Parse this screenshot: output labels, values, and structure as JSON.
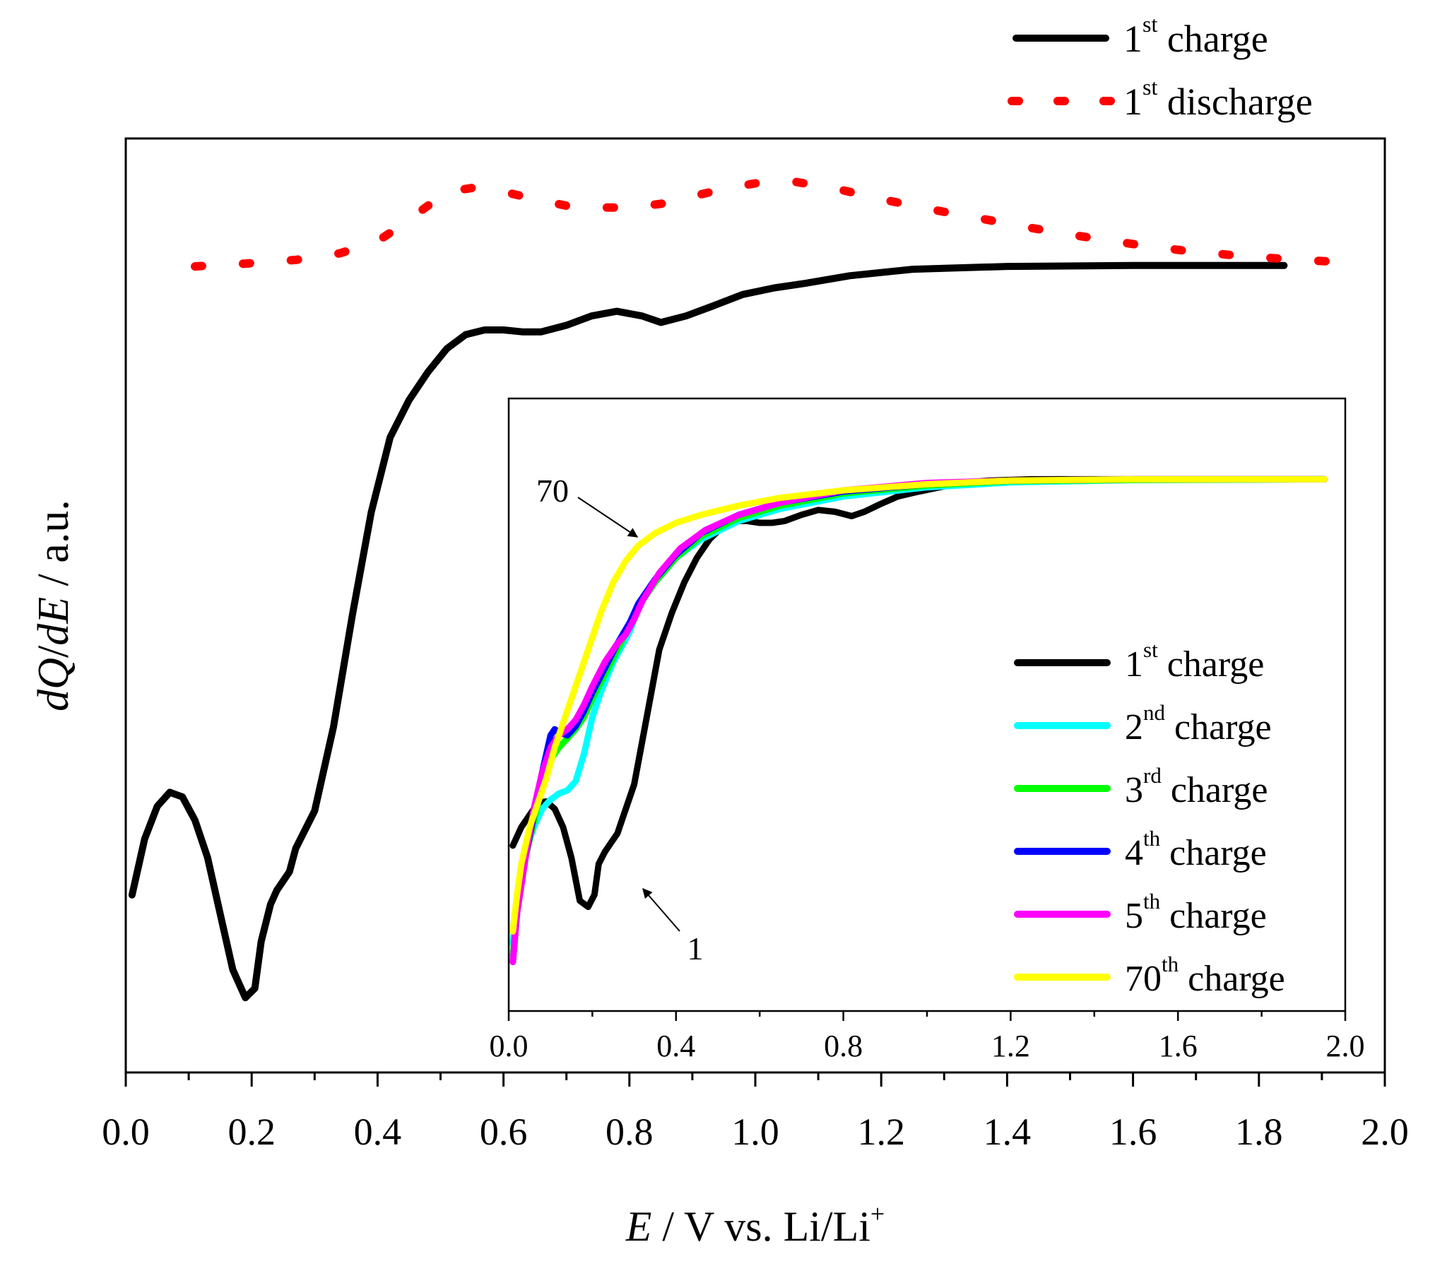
{
  "chart_data": [
    {
      "id": "main",
      "type": "line",
      "xlabel": {
        "italic": "E",
        "rest": " / V vs. Li/Li",
        "sup": "+"
      },
      "ylabel": {
        "parts": [
          {
            "text": "dQ",
            "italic": true
          },
          {
            "text": "/",
            "italic": false
          },
          {
            "text": "dE",
            "italic": true
          },
          {
            "text": " / a.u.",
            "italic": false
          }
        ]
      },
      "xlim": [
        0.0,
        2.0
      ],
      "ylim": [
        0.0,
        1.0
      ],
      "y_ticks_shown": false,
      "x_ticks": [
        "0.0",
        "0.2",
        "0.4",
        "0.6",
        "0.8",
        "1.0",
        "1.2",
        "1.4",
        "1.6",
        "1.8",
        "2.0"
      ],
      "legend": [
        {
          "num": "1",
          "sup": "st",
          "text": "charge",
          "color": "#000000",
          "style": "solid"
        },
        {
          "num": "1",
          "sup": "st",
          "text": "discharge",
          "color": "#ff0000",
          "style": "dotted"
        }
      ],
      "series": [
        {
          "name": "1st charge",
          "color": "#000000",
          "style": "solid",
          "x": [
            0.01,
            0.03,
            0.05,
            0.07,
            0.09,
            0.11,
            0.13,
            0.15,
            0.17,
            0.19,
            0.205,
            0.215,
            0.23,
            0.24,
            0.26,
            0.27,
            0.3,
            0.33,
            0.36,
            0.39,
            0.42,
            0.45,
            0.48,
            0.51,
            0.54,
            0.57,
            0.6,
            0.63,
            0.66,
            0.7,
            0.74,
            0.78,
            0.82,
            0.85,
            0.89,
            0.93,
            0.98,
            1.03,
            1.08,
            1.15,
            1.25,
            1.4,
            1.6,
            1.84
          ],
          "y": [
            0.19,
            0.25,
            0.285,
            0.3,
            0.295,
            0.27,
            0.23,
            0.17,
            0.11,
            0.08,
            0.09,
            0.14,
            0.18,
            0.195,
            0.215,
            0.24,
            0.28,
            0.37,
            0.49,
            0.6,
            0.68,
            0.72,
            0.75,
            0.775,
            0.79,
            0.795,
            0.795,
            0.793,
            0.793,
            0.8,
            0.81,
            0.815,
            0.81,
            0.803,
            0.81,
            0.82,
            0.833,
            0.84,
            0.845,
            0.853,
            0.86,
            0.863,
            0.864,
            0.864
          ]
        },
        {
          "name": "1st discharge",
          "color": "#ff0000",
          "style": "dotted",
          "x": [
            0.11,
            0.19,
            0.27,
            0.34,
            0.4,
            0.44,
            0.48,
            0.51,
            0.55,
            0.6,
            0.65,
            0.7,
            0.75,
            0.8,
            0.85,
            0.9,
            0.95,
            1.0,
            1.06,
            1.13,
            1.2,
            1.28,
            1.36,
            1.44,
            1.52,
            1.6,
            1.68,
            1.76,
            1.84,
            1.92
          ],
          "y": [
            0.863,
            0.866,
            0.87,
            0.877,
            0.89,
            0.908,
            0.928,
            0.943,
            0.947,
            0.943,
            0.935,
            0.928,
            0.926,
            0.926,
            0.93,
            0.938,
            0.946,
            0.952,
            0.954,
            0.946,
            0.935,
            0.924,
            0.914,
            0.904,
            0.895,
            0.887,
            0.88,
            0.875,
            0.871,
            0.868
          ]
        }
      ]
    },
    {
      "id": "inset",
      "type": "line",
      "xlim": [
        0.0,
        2.0
      ],
      "ylim": [
        0.0,
        1.0
      ],
      "y_ticks_shown": false,
      "x_ticks": [
        "0.0",
        "0.4",
        "0.8",
        "1.2",
        "1.6",
        "2.0"
      ],
      "legend": [
        {
          "num": "1",
          "sup": "st",
          "text": "charge",
          "color": "#000000"
        },
        {
          "num": "2",
          "sup": "nd",
          "text": "charge",
          "color": "#00ffff"
        },
        {
          "num": "3",
          "sup": "rd",
          "text": "charge",
          "color": "#00ff00"
        },
        {
          "num": "4",
          "sup": "th",
          "text": "charge",
          "color": "#0000ff"
        },
        {
          "num": "5",
          "sup": "th",
          "text": "charge",
          "color": "#ff00ff"
        },
        {
          "num": "70",
          "sup": "th",
          "text": "charge",
          "color": "#ffff00"
        }
      ],
      "annotations": [
        {
          "text": "70",
          "target_series": "70th charge"
        },
        {
          "text": "1",
          "target_series": "1st charge"
        }
      ],
      "series": [
        {
          "name": "1st charge",
          "color": "#000000",
          "x": [
            0.01,
            0.03,
            0.05,
            0.07,
            0.09,
            0.11,
            0.13,
            0.15,
            0.17,
            0.19,
            0.205,
            0.215,
            0.23,
            0.24,
            0.26,
            0.27,
            0.3,
            0.33,
            0.36,
            0.39,
            0.42,
            0.45,
            0.48,
            0.51,
            0.54,
            0.57,
            0.6,
            0.63,
            0.66,
            0.7,
            0.74,
            0.78,
            0.82,
            0.85,
            0.89,
            0.93,
            0.98,
            1.03,
            1.08,
            1.15,
            1.25,
            1.4,
            1.6,
            1.95
          ],
          "y": [
            0.27,
            0.3,
            0.32,
            0.34,
            0.342,
            0.33,
            0.3,
            0.25,
            0.18,
            0.17,
            0.19,
            0.24,
            0.26,
            0.27,
            0.29,
            0.31,
            0.37,
            0.48,
            0.59,
            0.65,
            0.7,
            0.74,
            0.77,
            0.79,
            0.8,
            0.8,
            0.797,
            0.797,
            0.8,
            0.81,
            0.818,
            0.815,
            0.808,
            0.815,
            0.828,
            0.84,
            0.848,
            0.855,
            0.862,
            0.866,
            0.868,
            0.868,
            0.868,
            0.868
          ]
        },
        {
          "name": "2nd charge",
          "color": "#00ffff",
          "x": [
            0.01,
            0.02,
            0.04,
            0.06,
            0.08,
            0.1,
            0.12,
            0.14,
            0.16,
            0.18,
            0.2,
            0.22,
            0.25,
            0.29,
            0.31,
            0.35,
            0.4,
            0.46,
            0.55,
            0.65,
            0.8,
            1.0,
            1.2,
            1.5,
            1.95
          ],
          "y": [
            0.11,
            0.19,
            0.26,
            0.3,
            0.33,
            0.345,
            0.355,
            0.36,
            0.375,
            0.42,
            0.48,
            0.52,
            0.57,
            0.62,
            0.66,
            0.7,
            0.74,
            0.77,
            0.8,
            0.82,
            0.84,
            0.855,
            0.863,
            0.867,
            0.868
          ]
        },
        {
          "name": "3rd charge",
          "color": "#00ff00",
          "x": [
            0.01,
            0.02,
            0.04,
            0.06,
            0.08,
            0.1,
            0.12,
            0.14,
            0.16,
            0.18,
            0.2,
            0.23,
            0.26,
            0.29,
            0.31,
            0.35,
            0.4,
            0.46,
            0.55,
            0.65,
            0.8,
            1.0,
            1.2,
            1.5,
            1.95
          ],
          "y": [
            0.09,
            0.17,
            0.25,
            0.31,
            0.37,
            0.41,
            0.43,
            0.445,
            0.46,
            0.48,
            0.51,
            0.55,
            0.59,
            0.63,
            0.66,
            0.7,
            0.74,
            0.775,
            0.805,
            0.825,
            0.845,
            0.858,
            0.865,
            0.867,
            0.868
          ]
        },
        {
          "name": "4th charge",
          "color": "#0000ff",
          "x": [
            0.01,
            0.02,
            0.04,
            0.06,
            0.08,
            0.1,
            0.11,
            0.12,
            0.14,
            0.16,
            0.18,
            0.2,
            0.23,
            0.26,
            0.29,
            0.31,
            0.35,
            0.4,
            0.46,
            0.55,
            0.65,
            0.8,
            1.0,
            1.2,
            1.5,
            1.95
          ],
          "y": [
            0.08,
            0.16,
            0.25,
            0.32,
            0.39,
            0.45,
            0.46,
            0.455,
            0.45,
            0.465,
            0.49,
            0.52,
            0.56,
            0.6,
            0.635,
            0.665,
            0.705,
            0.745,
            0.78,
            0.81,
            0.83,
            0.848,
            0.86,
            0.866,
            0.868,
            0.868
          ]
        },
        {
          "name": "5th charge",
          "color": "#ff00ff",
          "x": [
            0.01,
            0.02,
            0.04,
            0.06,
            0.08,
            0.1,
            0.12,
            0.14,
            0.16,
            0.18,
            0.2,
            0.23,
            0.26,
            0.28,
            0.3,
            0.32,
            0.36,
            0.41,
            0.47,
            0.55,
            0.65,
            0.8,
            1.0,
            1.2,
            1.5,
            1.95
          ],
          "y": [
            0.08,
            0.16,
            0.25,
            0.33,
            0.39,
            0.43,
            0.45,
            0.46,
            0.475,
            0.5,
            0.53,
            0.57,
            0.6,
            0.615,
            0.64,
            0.67,
            0.715,
            0.755,
            0.785,
            0.81,
            0.83,
            0.85,
            0.862,
            0.866,
            0.868,
            0.868
          ]
        },
        {
          "name": "70th charge",
          "color": "#ffff00",
          "x": [
            0.01,
            0.02,
            0.03,
            0.05,
            0.07,
            0.09,
            0.11,
            0.13,
            0.16,
            0.19,
            0.22,
            0.25,
            0.28,
            0.31,
            0.35,
            0.4,
            0.46,
            0.55,
            0.65,
            0.8,
            1.0,
            1.2,
            1.5,
            1.95
          ],
          "y": [
            0.13,
            0.19,
            0.24,
            0.3,
            0.34,
            0.38,
            0.43,
            0.47,
            0.53,
            0.59,
            0.65,
            0.7,
            0.735,
            0.76,
            0.78,
            0.797,
            0.81,
            0.825,
            0.838,
            0.85,
            0.86,
            0.866,
            0.868,
            0.868
          ]
        }
      ]
    }
  ]
}
